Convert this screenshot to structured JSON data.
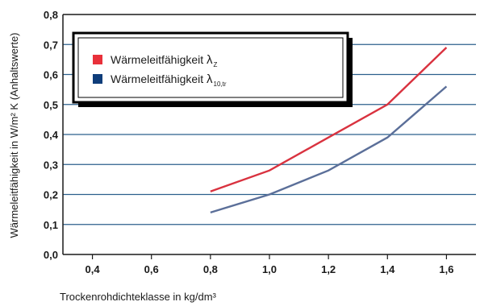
{
  "chart_data": {
    "type": "line",
    "xlabel": "Trockenrohdichteklasse in kg/dm³",
    "ylabel": "Wärmeleitfähigkeit in W/m² K (Anhaltswerte)",
    "xlim": [
      0.3,
      1.7
    ],
    "ylim": [
      0,
      0.8
    ],
    "x_ticks": [
      "0,4",
      "0,6",
      "0,8",
      "1,0",
      "1,2",
      "1,4",
      "1,6"
    ],
    "y_ticks": [
      "0,0",
      "0,1",
      "0,2",
      "0,3",
      "0,4",
      "0,5",
      "0,6",
      "0,7",
      "0,8"
    ],
    "grid": "horizontal",
    "legend_position": "top-left",
    "series": [
      {
        "name": "Wärmeleitfähigkeit λZ",
        "legend_text": "Wärmeleitfähigkeit",
        "legend_symbol": "λ",
        "legend_subscript": "Z",
        "swatch_color": "#e8303a",
        "color": "#d9323f",
        "x": [
          0.8,
          1.0,
          1.2,
          1.4,
          1.6
        ],
        "values": [
          0.21,
          0.28,
          0.39,
          0.5,
          0.69
        ]
      },
      {
        "name": "Wärmeleitfähigkeit λ10,tr",
        "legend_text": "Wärmeleitfähigkeit",
        "legend_symbol": "λ",
        "legend_subscript": "10,tr",
        "swatch_color": "#0f3d7a",
        "color": "#5b6f99",
        "x": [
          0.8,
          1.0,
          1.2,
          1.4,
          1.6
        ],
        "values": [
          0.14,
          0.2,
          0.28,
          0.39,
          0.56
        ]
      }
    ],
    "colors": {
      "gridline": "#2b5f8c",
      "frame": "#1a1a1a"
    }
  }
}
